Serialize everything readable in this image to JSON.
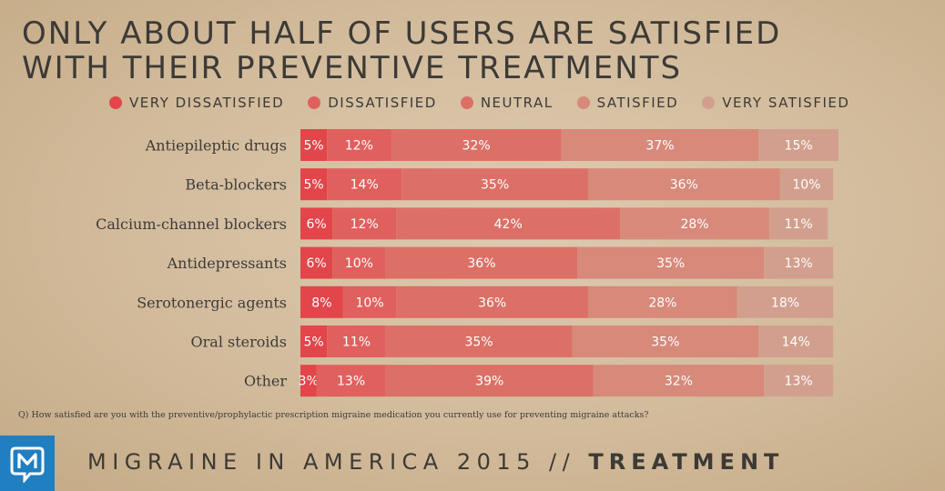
{
  "title": {
    "line1": "ONLY ABOUT HALF OF USERS ARE SATISFIED",
    "line2": "WITH THEIR PREVENTIVE TREATMENTS"
  },
  "question": "Q) How satisfied are you with the preventive/prophylactic prescription migraine medication you currently use for preventing migraine attacks?",
  "footer": {
    "prefix": "MIGRAINE IN AMERICA 2015 // ",
    "section": "TREATMENT"
  },
  "logo": {
    "icon": "m-chat-bubble-logo",
    "letter": "M",
    "color": "#1f7fc0"
  },
  "chart_data": {
    "type": "bar",
    "orientation": "horizontal",
    "stacked": true,
    "unit": "%",
    "legend_placement": "top",
    "grid": false,
    "xlim": [
      0,
      100
    ],
    "categories": [
      "Antiepileptic drugs",
      "Beta-blockers",
      "Calcium-channel blockers",
      "Antidepressants",
      "Serotonergic agents",
      "Oral steroids",
      "Other"
    ],
    "series": [
      {
        "name": "VERY DISSATISFIED",
        "color": "#e2454a",
        "values": [
          5,
          5,
          6,
          6,
          8,
          5,
          3
        ]
      },
      {
        "name": "DISSATISFIED",
        "color": "#e0605e",
        "values": [
          12,
          14,
          12,
          10,
          10,
          11,
          13
        ]
      },
      {
        "name": "NEUTRAL",
        "color": "#dc7066",
        "values": [
          32,
          35,
          42,
          36,
          36,
          35,
          39
        ]
      },
      {
        "name": "SATISFIED",
        "color": "#d7897a",
        "values": [
          37,
          36,
          28,
          35,
          28,
          35,
          32
        ]
      },
      {
        "name": "VERY SATISFIED",
        "color": "#d29f8e",
        "values": [
          15,
          10,
          11,
          13,
          18,
          14,
          13
        ]
      }
    ]
  }
}
